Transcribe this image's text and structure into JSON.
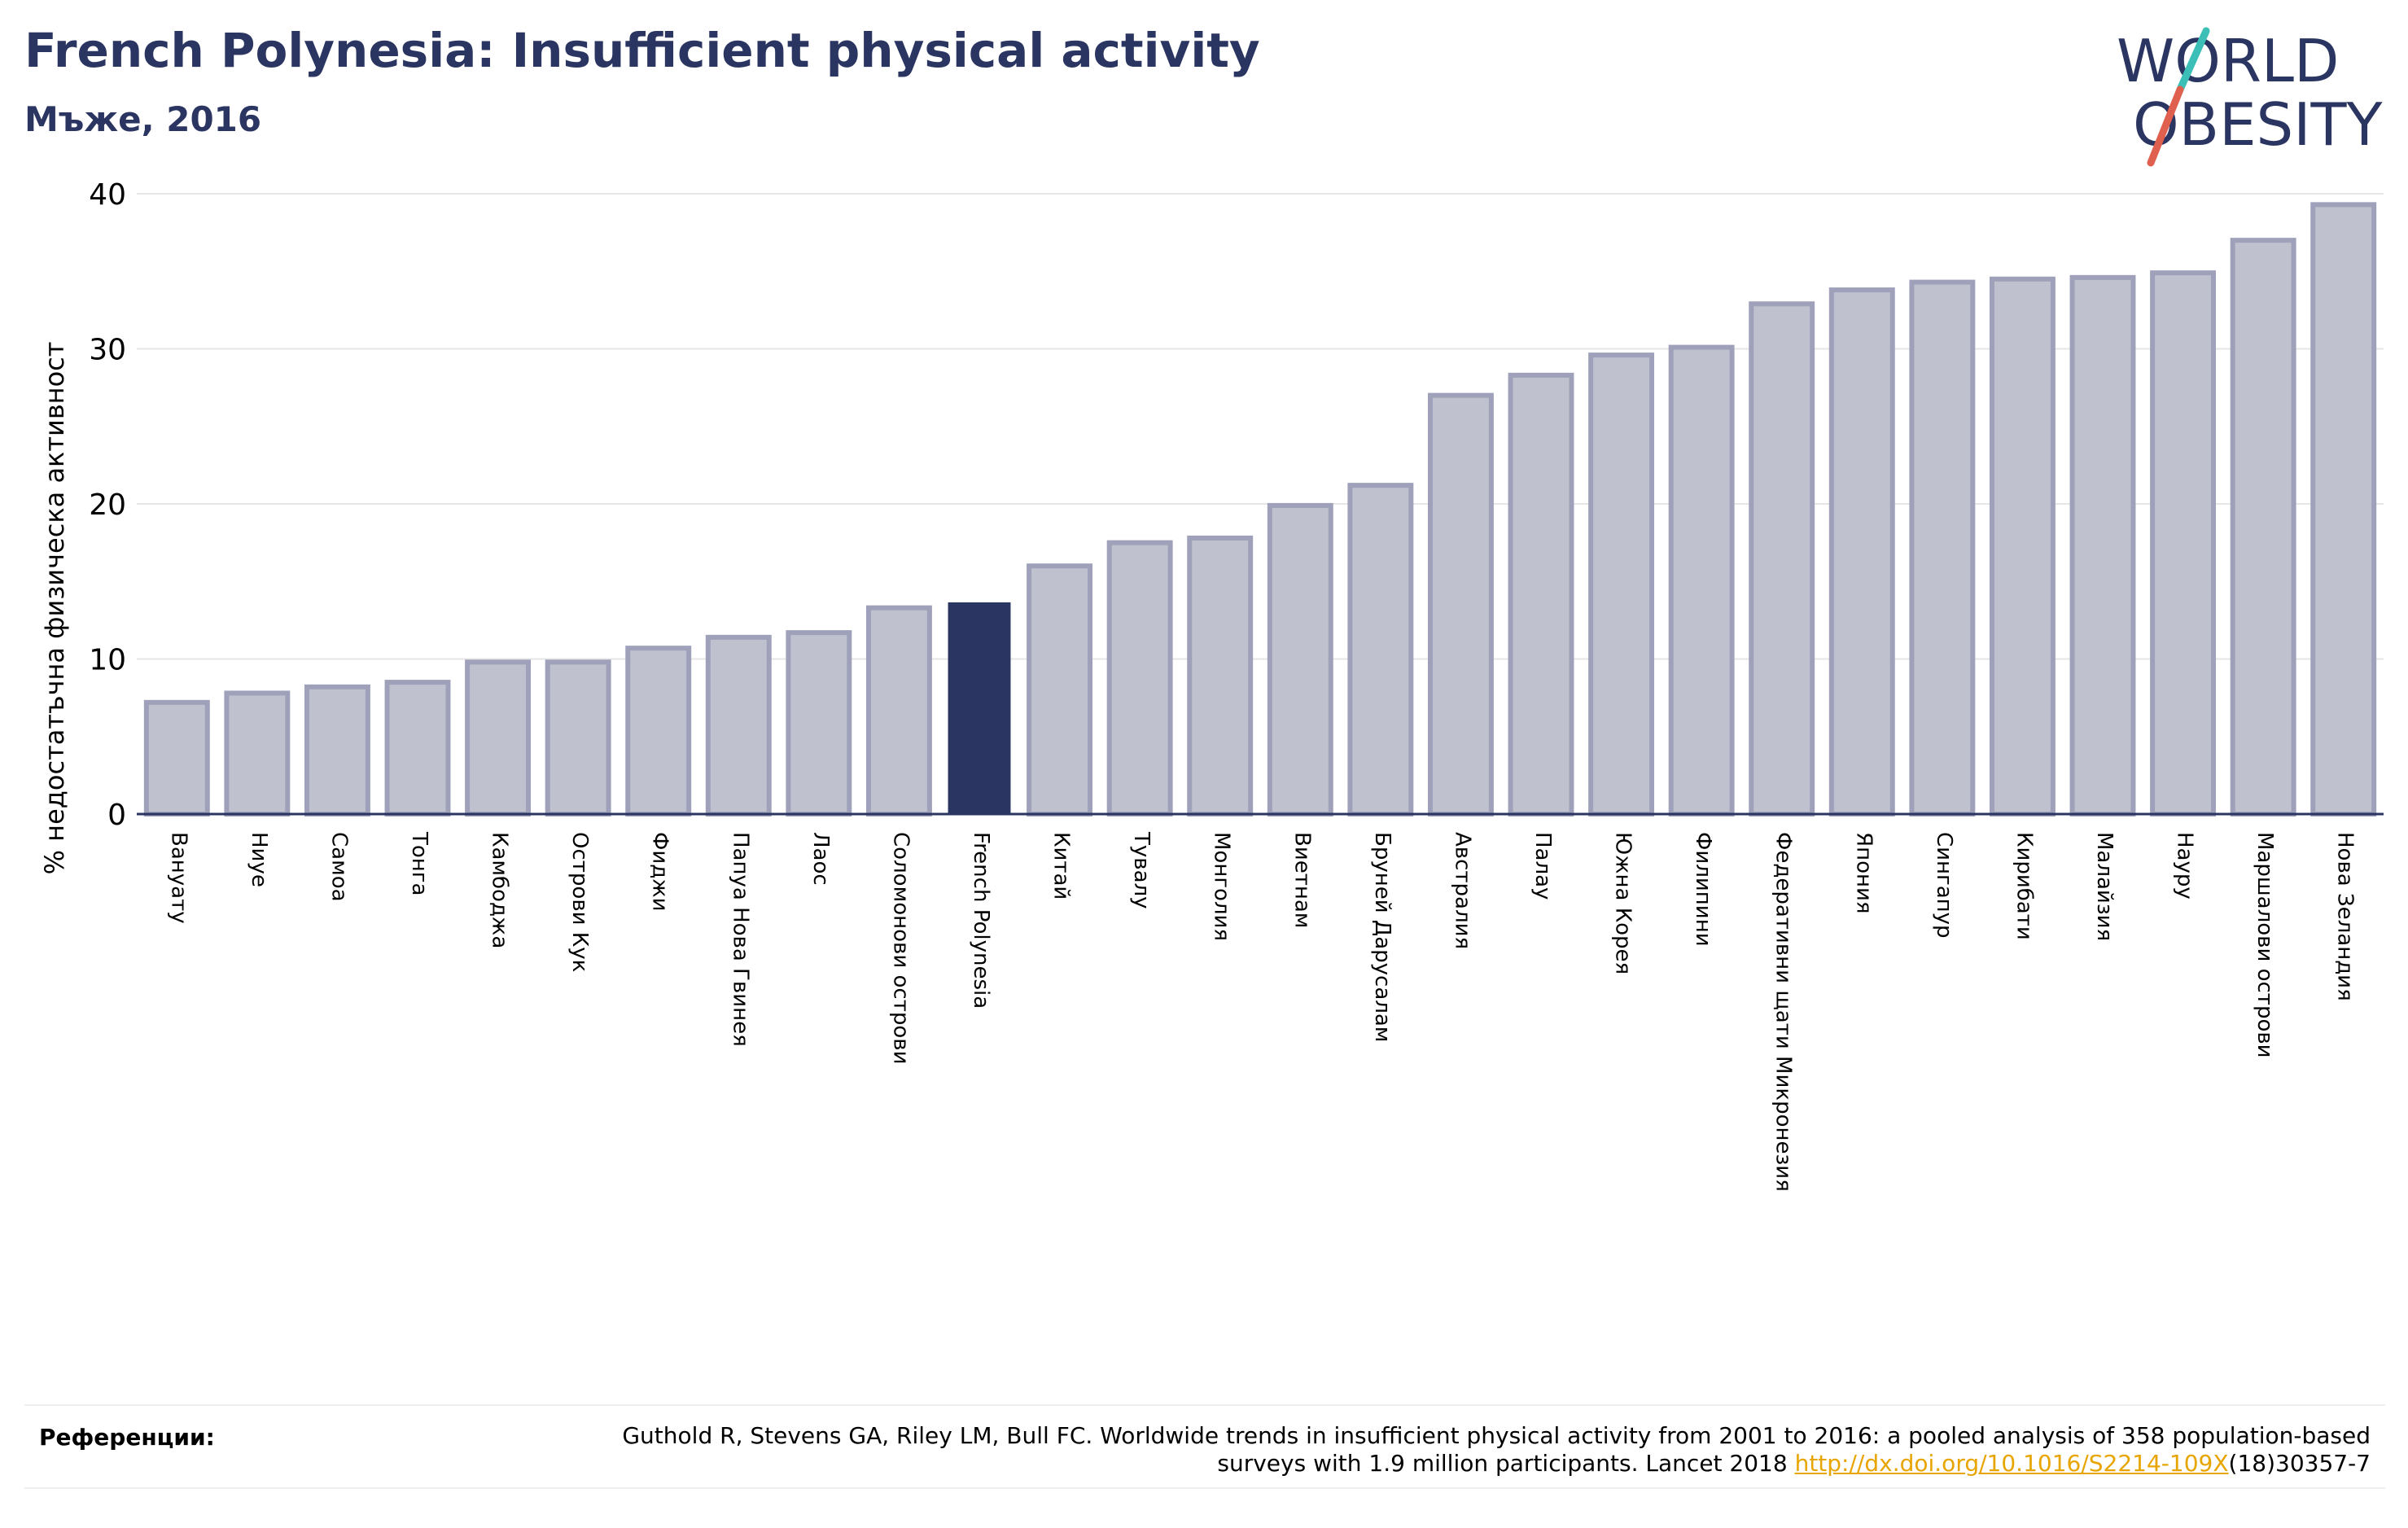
{
  "header": {
    "title": "French Polynesia: Insufficient physical activity",
    "subtitle": "Мъже, 2016"
  },
  "logo": {
    "line1": "WORLD",
    "line2": "OBESITY",
    "text_color": "#2b3561",
    "slash_color_top": "#3bbfb7",
    "slash_color_bottom": "#e0604f"
  },
  "colors": {
    "bar_fill": "#bfc1cf",
    "bar_stroke": "#9ea1b9",
    "highlight_fill": "#2b3561",
    "grid": "#e6e6e6",
    "axis": "#2b3561"
  },
  "chart_data": {
    "type": "bar",
    "title": "French Polynesia: Insufficient physical activity",
    "subtitle": "Мъже, 2016",
    "xlabel": "",
    "ylabel": "% недостатъчна физическа активност",
    "ylim": [
      0,
      40
    ],
    "yticks": [
      0,
      10,
      20,
      30,
      40
    ],
    "grid": true,
    "highlight": "French Polynesia",
    "categories": [
      "Вануату",
      "Ниуе",
      "Самоа",
      "Тонга",
      "Камбоджа",
      "Острови Кук",
      "Фиджи",
      "Папуа Нова Гвинея",
      "Лаос",
      "Соломонови острови",
      "French Polynesia",
      "Китай",
      "Тувалу",
      "Монголия",
      "Виетнам",
      "Бруней Дарусалам",
      "Австралия",
      "Палау",
      "Южна Корея",
      "Филипини",
      "Федеративни щати Микронезия",
      "Япония",
      "Сингапур",
      "Кирибати",
      "Малайзия",
      "Науру",
      "Маршалови острови",
      "Нова Зеландия"
    ],
    "values": [
      7.2,
      7.8,
      8.2,
      8.5,
      9.8,
      9.8,
      10.7,
      11.4,
      11.7,
      13.3,
      13.6,
      16.0,
      17.5,
      17.8,
      19.9,
      21.2,
      27.0,
      28.3,
      29.6,
      30.1,
      32.9,
      33.8,
      34.3,
      34.5,
      34.6,
      34.9,
      37.0,
      39.3
    ]
  },
  "references": {
    "label": "Референции:",
    "text": "Guthold R, Stevens GA, Riley LM, Bull FC. Worldwide trends in insufficient physical activity from 2001 to 2016: a pooled analysis of 358 population-based surveys with 1.9 million participants. Lancet 2018 ",
    "link_text": "http://dx.doi.org/10.1016/S2214-109X",
    "suffix": "(18)30357-7"
  }
}
